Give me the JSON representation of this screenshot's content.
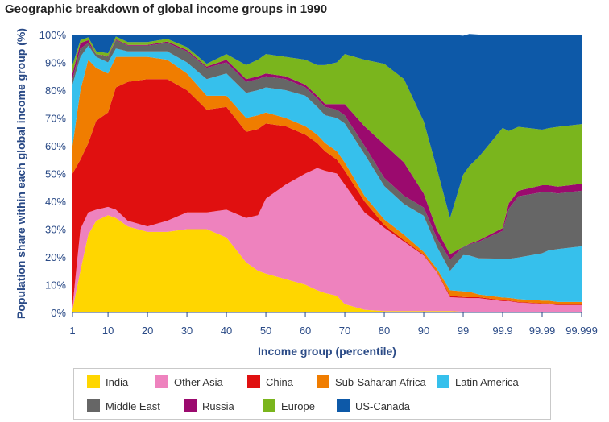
{
  "chart_data": {
    "type": "area",
    "stacked": true,
    "title": "Geographic breakdown of global income groups in 1990",
    "xlabel": "Income group (percentile)",
    "ylabel": "Population share within each global income group (%)",
    "ylim": [
      0,
      100
    ],
    "yticks": [
      "0%",
      "10%",
      "20%",
      "30%",
      "40%",
      "50%",
      "60%",
      "70%",
      "80%",
      "90%",
      "100%"
    ],
    "xticks": [
      "1",
      "10",
      "20",
      "30",
      "40",
      "50",
      "60",
      "70",
      "80",
      "90",
      "99",
      "99.9",
      "99.99",
      "99.999"
    ],
    "x": [
      "1",
      "3",
      "5",
      "7",
      "10",
      "12",
      "15",
      "20",
      "25",
      "30",
      "35",
      "40",
      "45",
      "48",
      "50",
      "55",
      "60",
      "63",
      "65",
      "68",
      "70",
      "75",
      "80",
      "85",
      "90",
      "93",
      "96",
      "99",
      "99.3",
      "99.6",
      "99.9",
      "99.93",
      "99.96",
      "99.99",
      "99.993",
      "99.996",
      "99.999"
    ],
    "legend_position": "bottom",
    "series": [
      {
        "name": "India",
        "color": "#ffd600",
        "values": [
          1,
          15,
          28,
          33,
          35,
          34,
          31,
          29,
          29,
          30,
          30,
          27,
          18,
          15,
          14,
          12,
          10,
          8,
          7,
          6,
          3,
          1,
          0.5,
          0.5,
          0.5,
          0.5,
          0.5,
          0.3,
          0.2,
          0.2,
          0.1,
          0.1,
          0.1,
          0.1,
          0.1,
          0.1,
          0.1
        ]
      },
      {
        "name": "Other Asia",
        "color": "#ee82be",
        "values": [
          1,
          15,
          8,
          4,
          3,
          3,
          2,
          2,
          4,
          6,
          6,
          10,
          16,
          20,
          27,
          34,
          40,
          44,
          44,
          44,
          43,
          35,
          30,
          25,
          20,
          14,
          5,
          5,
          5,
          5,
          4,
          4,
          3.5,
          3,
          3,
          2.5,
          2.5
        ]
      },
      {
        "name": "China",
        "color": "#e01010",
        "values": [
          48,
          25,
          25,
          32,
          34,
          44,
          50,
          53,
          51,
          44,
          37,
          37,
          31,
          31,
          27,
          21,
          14,
          9,
          7,
          5,
          5,
          4,
          1,
          0.5,
          0.3,
          0.2,
          0.5,
          0.3,
          0.3,
          0.3,
          0.3,
          0.2,
          0.2,
          0.2,
          0.2,
          0.2,
          0.2
        ]
      },
      {
        "name": "Sub-Saharan Africa",
        "color": "#f07d00",
        "values": [
          10,
          25,
          30,
          19,
          14,
          11,
          9,
          8,
          7,
          6,
          5,
          4,
          5,
          5,
          4,
          3,
          3,
          3,
          3,
          3,
          3,
          2,
          2,
          2,
          1,
          1,
          2,
          2,
          2,
          1,
          1,
          1,
          1,
          1,
          1,
          1,
          1
        ]
      },
      {
        "name": "Latin America",
        "color": "#36c0ec",
        "values": [
          22,
          12,
          5,
          4,
          4,
          3,
          2,
          2,
          3,
          4,
          6,
          8,
          9,
          9,
          9,
          10,
          11,
          10,
          10,
          12,
          14,
          15,
          12,
          11,
          13,
          8,
          7,
          13,
          13,
          13,
          14,
          14,
          15,
          17,
          18,
          19,
          20
        ]
      },
      {
        "name": "Middle East",
        "color": "#666666",
        "values": [
          2,
          3,
          1,
          1,
          2,
          3,
          2,
          2,
          3,
          4,
          4,
          4,
          4,
          4,
          4,
          4,
          3,
          3,
          3,
          3,
          3,
          3,
          3,
          3,
          3,
          3,
          4,
          3,
          4,
          6,
          10,
          18,
          22,
          22,
          21,
          20,
          20
        ]
      },
      {
        "name": "Russia",
        "color": "#9b0a6e",
        "values": [
          2,
          2,
          1,
          0,
          0.3,
          0.3,
          0.3,
          0.3,
          0.5,
          0.5,
          0.5,
          1,
          1,
          1,
          1,
          1,
          1,
          1,
          1,
          2,
          4,
          7,
          12,
          12,
          5,
          3,
          2,
          0,
          0.2,
          0.5,
          1,
          2,
          2,
          2.5,
          2.5,
          2.5,
          2.5
        ]
      },
      {
        "name": "Europe",
        "color": "#7ab51d",
        "values": [
          3,
          1,
          1,
          1,
          1,
          1,
          1,
          1,
          1,
          1,
          1,
          2,
          5,
          6,
          7,
          7,
          9,
          11,
          14,
          15,
          18,
          24,
          29,
          30,
          26,
          22,
          13,
          26,
          28,
          30,
          36,
          26,
          23,
          20,
          20.5,
          21.5,
          21.5
        ]
      },
      {
        "name": "US-Canada",
        "color": "#0d59a8",
        "values": [
          11,
          2,
          1,
          6,
          6.7,
          0.7,
          2.7,
          2.7,
          1.5,
          4.5,
          10.5,
          7,
          11,
          9,
          7,
          8,
          9,
          11,
          11,
          10,
          7,
          9,
          10.5,
          16,
          31.2,
          48.3,
          66,
          50,
          47.5,
          44,
          33.6,
          34.7,
          33.2,
          34.2,
          33.7,
          33.2,
          32.2
        ]
      }
    ]
  },
  "legend": [
    {
      "label": "India",
      "color": "#ffd600"
    },
    {
      "label": "Other Asia",
      "color": "#ee82be"
    },
    {
      "label": "China",
      "color": "#e01010"
    },
    {
      "label": "Sub-Saharan Africa",
      "color": "#f07d00"
    },
    {
      "label": "Latin America",
      "color": "#36c0ec"
    },
    {
      "label": "Middle East",
      "color": "#666666"
    },
    {
      "label": "Russia",
      "color": "#9b0a6e"
    },
    {
      "label": "Europe",
      "color": "#7ab51d"
    },
    {
      "label": "US-Canada",
      "color": "#0d59a8"
    }
  ]
}
